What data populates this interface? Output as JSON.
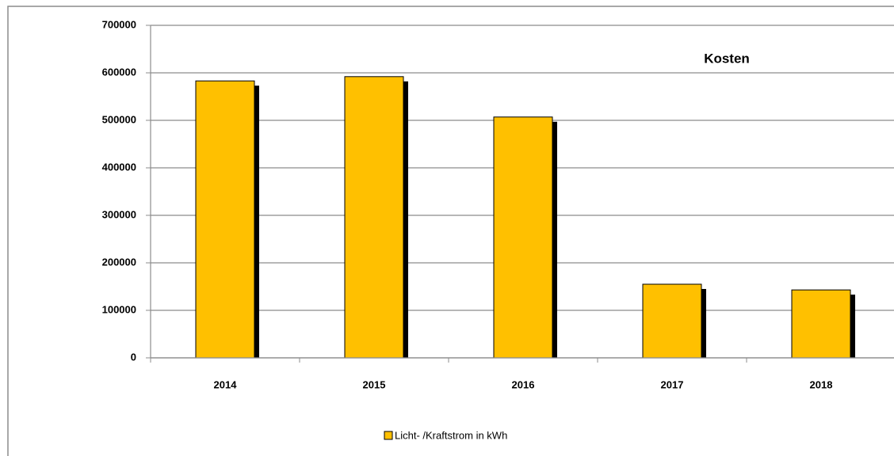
{
  "chart_data": {
    "type": "bar",
    "title": "Kosten",
    "categories": [
      "2014",
      "2015",
      "2016",
      "2017",
      "2018"
    ],
    "series": [
      {
        "name": "Licht- /Kraftstrom in kWh",
        "color": "#ffc000",
        "values": [
          583000,
          592000,
          507000,
          155000,
          143000
        ]
      }
    ],
    "ylim": [
      0,
      700000
    ],
    "yticks": [
      0,
      100000,
      200000,
      300000,
      400000,
      500000,
      600000,
      700000
    ],
    "grid": true,
    "legend": "bottom"
  }
}
